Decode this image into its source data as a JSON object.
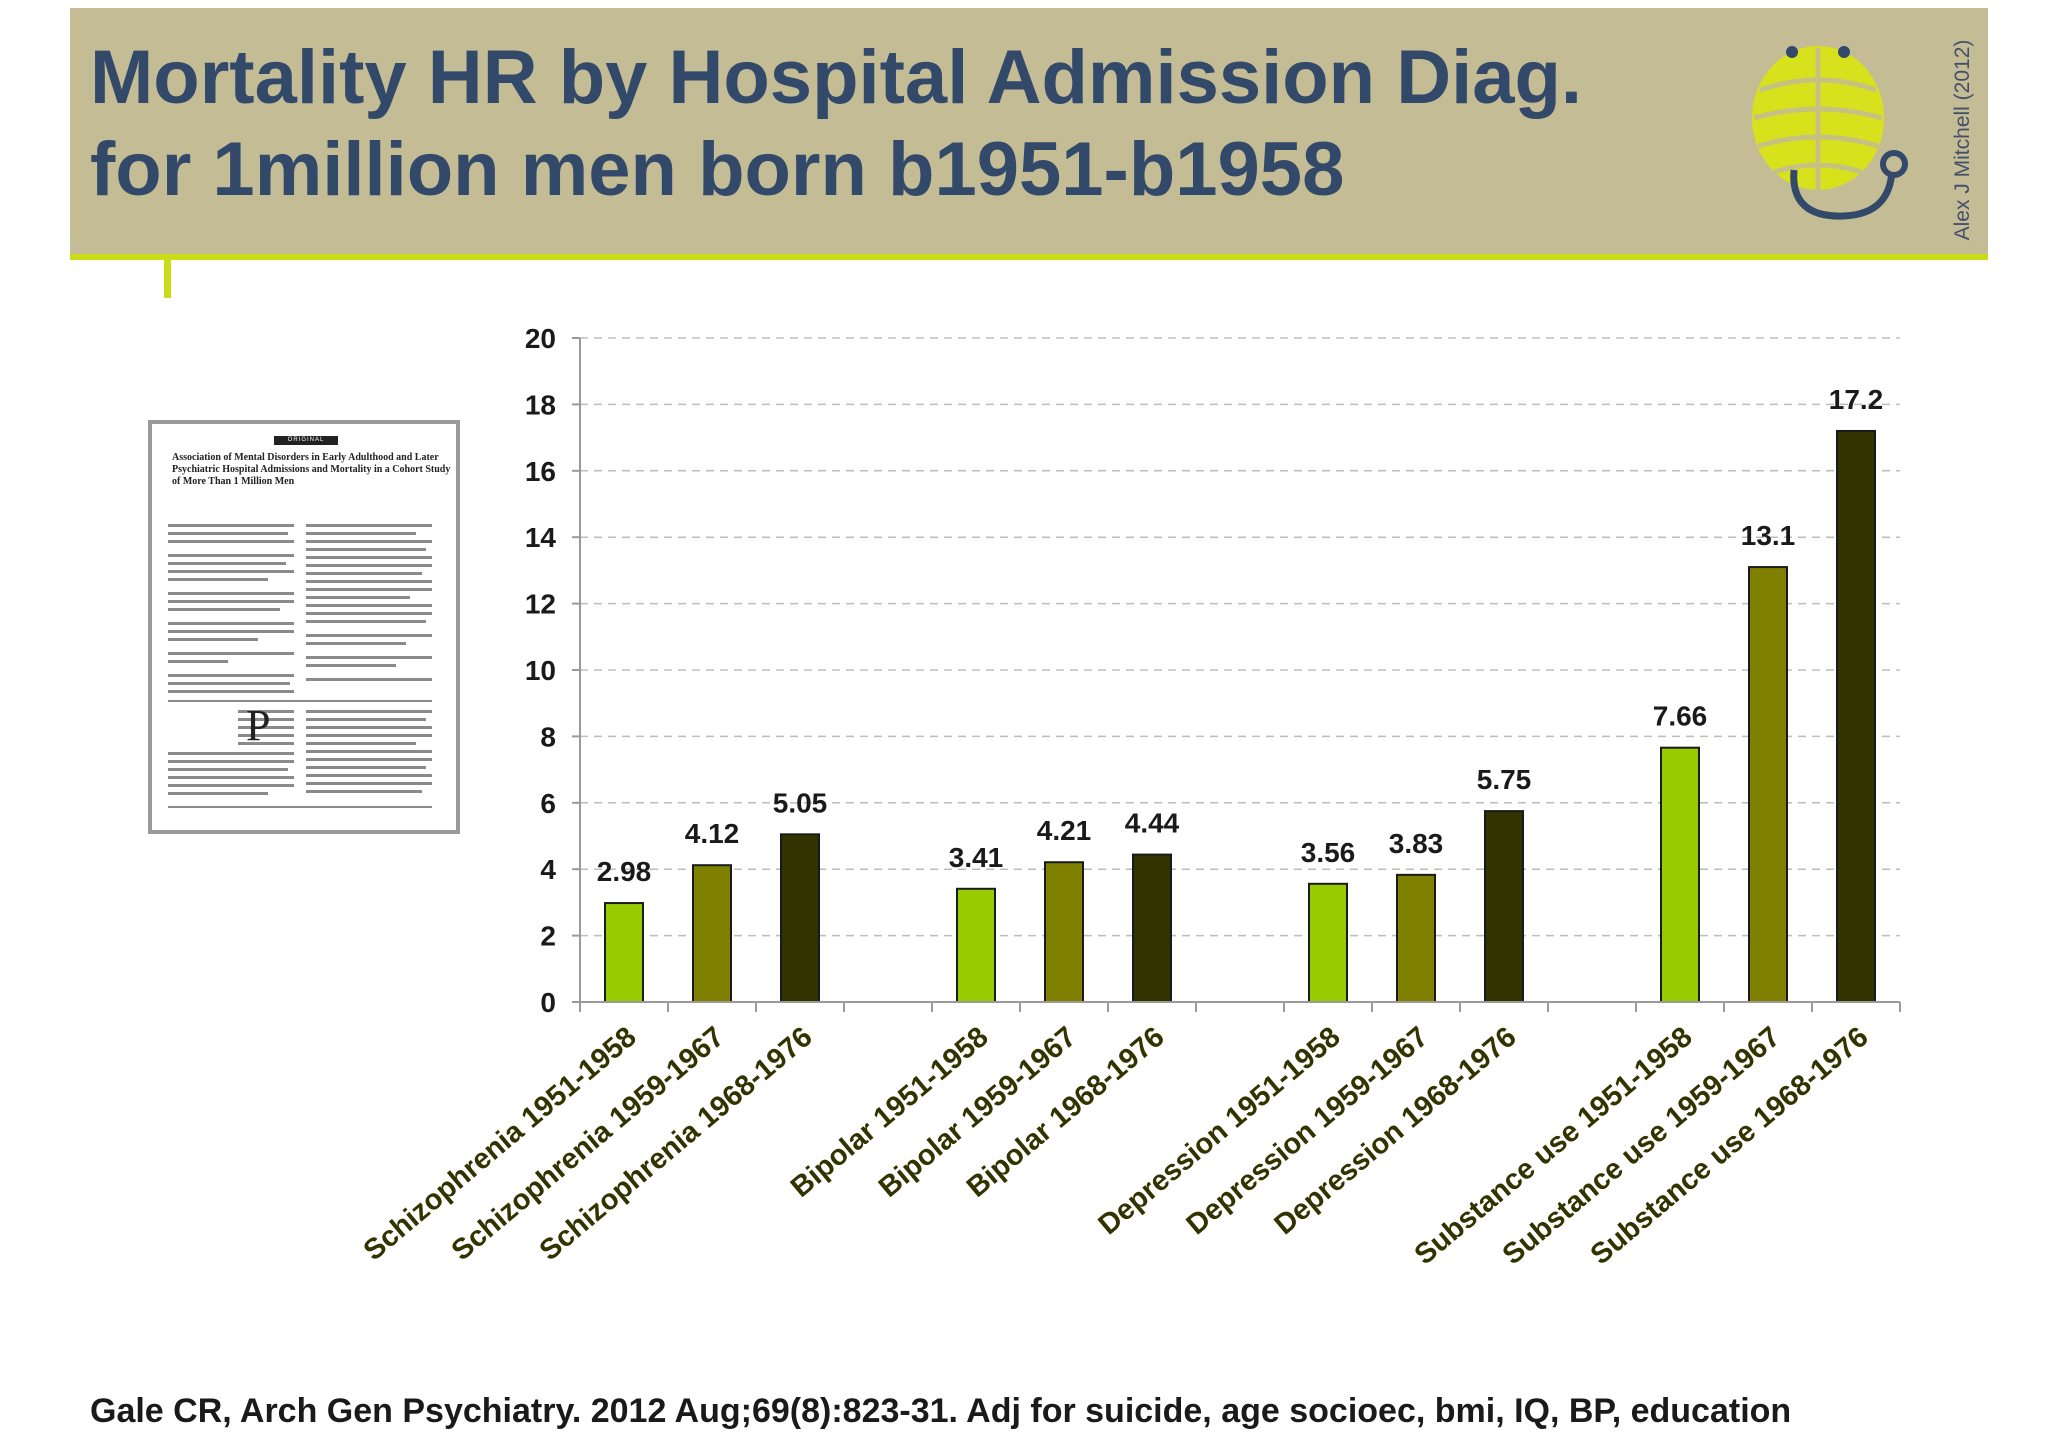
{
  "slide": {
    "title_line1": "Mortality HR by Hospital Admission Diag.",
    "title_line2": "for 1million men born b1951-b1958",
    "credit": "Alex J Mitchell (2012)",
    "footer": "Gale CR,  Arch Gen Psychiatry. 2012 Aug;69(8):823-31. Adj for suicide, age socioec, bmi, IQ, BP, education"
  },
  "paper_thumbnail": {
    "tag": "ORIGINAL ARTICLE",
    "title": "Association of Mental Disorders in Early Adulthood and Later Psychiatric Hospital Admissions and Mortality in a Cohort Study of More Than 1 Million Men",
    "drop_cap": "P"
  },
  "colors": {
    "header_bg": "#c4bc95",
    "accent": "#c9dc17",
    "title": "#33496a",
    "series": [
      "#99cc00",
      "#7f7f00",
      "#333300"
    ]
  },
  "chart_data": {
    "type": "bar",
    "title": "",
    "xlabel": "",
    "ylabel": "",
    "ylim": [
      0,
      20
    ],
    "yticks": [
      0,
      2,
      4,
      6,
      8,
      10,
      12,
      14,
      16,
      18,
      20
    ],
    "grid": true,
    "bars": [
      {
        "label": "Schizophrenia 1951-1958",
        "value": 2.98,
        "value_label": "2.98",
        "series": 0
      },
      {
        "label": "Schizophrenia 1959-1967",
        "value": 4.12,
        "value_label": "4.12",
        "series": 1
      },
      {
        "label": "Schizophrenia 1968-1976",
        "value": 5.05,
        "value_label": "5.05",
        "series": 2
      },
      {
        "label": "",
        "value": null,
        "value_label": "",
        "series": null
      },
      {
        "label": "Bipolar 1951-1958",
        "value": 3.41,
        "value_label": "3.41",
        "series": 0
      },
      {
        "label": "Bipolar 1959-1967",
        "value": 4.21,
        "value_label": "4.21",
        "series": 1
      },
      {
        "label": "Bipolar 1968-1976",
        "value": 4.44,
        "value_label": "4.44",
        "series": 2
      },
      {
        "label": "",
        "value": null,
        "value_label": "",
        "series": null
      },
      {
        "label": "Depression 1951-1958",
        "value": 3.56,
        "value_label": "3.56",
        "series": 0
      },
      {
        "label": "Depression 1959-1967",
        "value": 3.83,
        "value_label": "3.83",
        "series": 1
      },
      {
        "label": "Depression 1968-1976",
        "value": 5.75,
        "value_label": "5.75",
        "series": 2
      },
      {
        "label": "",
        "value": null,
        "value_label": "",
        "series": null
      },
      {
        "label": "Substance use 1951-1958",
        "value": 7.66,
        "value_label": "7.66",
        "series": 0
      },
      {
        "label": "Substance use 1959-1967",
        "value": 13.1,
        "value_label": "13.1",
        "series": 1
      },
      {
        "label": "Substance use 1968-1976",
        "value": 17.2,
        "value_label": "17.2",
        "series": 2
      }
    ]
  }
}
